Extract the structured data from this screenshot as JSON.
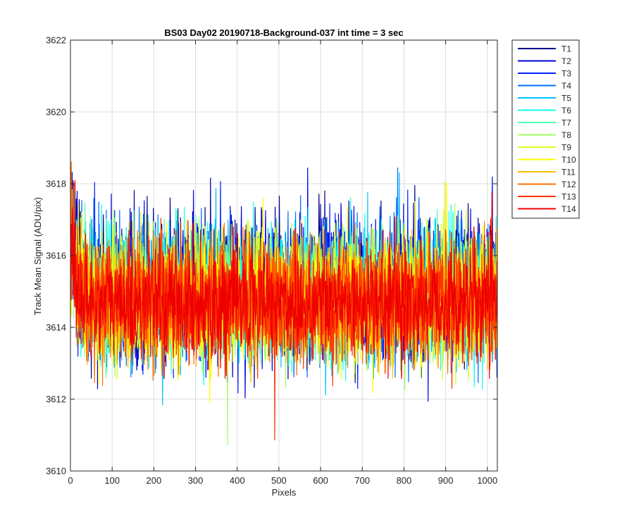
{
  "chart_data": {
    "type": "line",
    "title": "BS03 Day02 20190718-Background-037 int time = 3 sec",
    "xlabel": "Pixels",
    "ylabel": "Track Mean Signal (ADU/pix)",
    "xlim": [
      0,
      1024
    ],
    "ylim": [
      3610,
      3622
    ],
    "xticks": [
      0,
      100,
      200,
      300,
      400,
      500,
      600,
      700,
      800,
      900,
      1000
    ],
    "yticks": [
      3610,
      3612,
      3614,
      3616,
      3618,
      3620,
      3622
    ],
    "x_tick_labels": [
      "0",
      "100",
      "200",
      "300",
      "400",
      "500",
      "600",
      "700",
      "800",
      "900",
      "1000"
    ],
    "y_tick_labels": [
      "3610",
      "3612",
      "3614",
      "3616",
      "3618",
      "3620",
      "3622"
    ],
    "grid": true,
    "legend_position": "outside-top-right",
    "x_points": 1024,
    "series": [
      {
        "name": "T1",
        "color": "#00008f",
        "mean": 3615.2,
        "std": 0.95
      },
      {
        "name": "T2",
        "color": "#0000df",
        "mean": 3615.1,
        "std": 0.95
      },
      {
        "name": "T3",
        "color": "#0020ff",
        "mean": 3615.0,
        "std": 0.9
      },
      {
        "name": "T4",
        "color": "#0070ff",
        "mean": 3615.0,
        "std": 0.9
      },
      {
        "name": "T5",
        "color": "#00bfff",
        "mean": 3614.9,
        "std": 0.9
      },
      {
        "name": "T6",
        "color": "#10ffef",
        "mean": 3614.9,
        "std": 0.9
      },
      {
        "name": "T7",
        "color": "#50ffaf",
        "mean": 3614.9,
        "std": 0.85
      },
      {
        "name": "T8",
        "color": "#9fff60",
        "mean": 3614.8,
        "std": 0.85
      },
      {
        "name": "T9",
        "color": "#dfff20",
        "mean": 3614.8,
        "std": 0.85
      },
      {
        "name": "T10",
        "color": "#ffff00",
        "mean": 3614.8,
        "std": 0.85
      },
      {
        "name": "T11",
        "color": "#ffbf00",
        "mean": 3614.7,
        "std": 0.8
      },
      {
        "name": "T12",
        "color": "#ff7000",
        "mean": 3614.7,
        "std": 0.8
      },
      {
        "name": "T13",
        "color": "#ff3000",
        "mean": 3614.7,
        "std": 0.8
      },
      {
        "name": "T14",
        "color": "#ef0000",
        "mean": 3614.7,
        "std": 0.8
      }
    ]
  }
}
